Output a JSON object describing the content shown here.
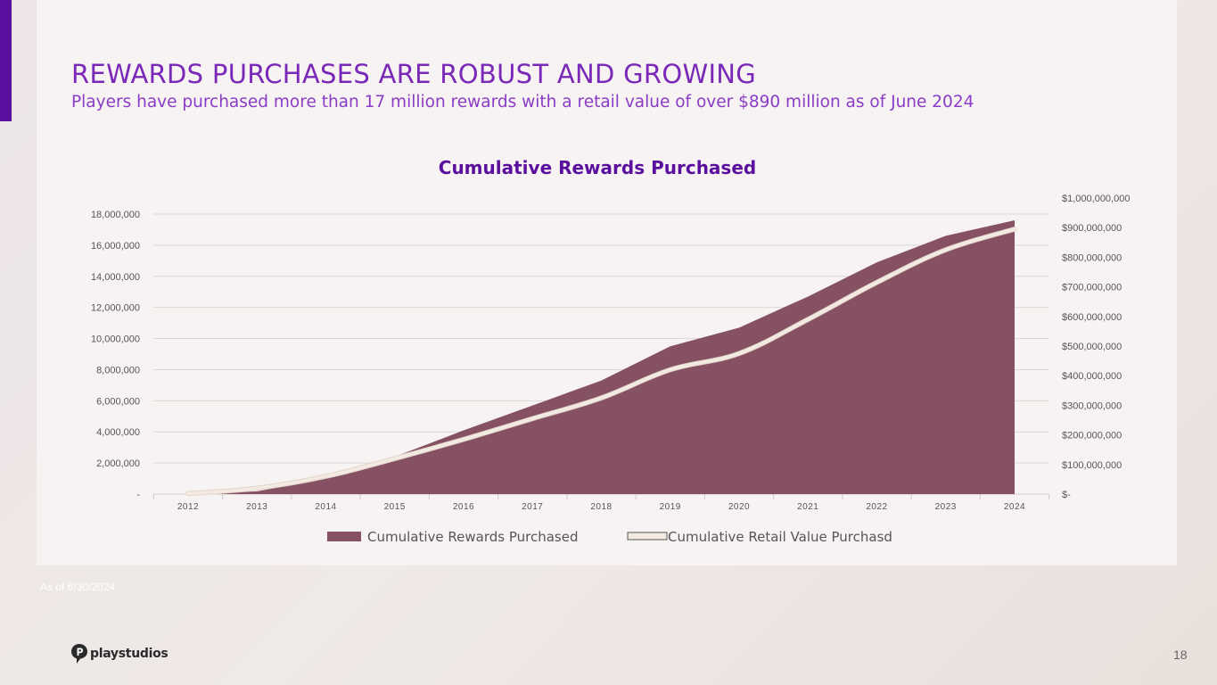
{
  "slide": {
    "title": "REWARDS PURCHASES ARE ROBUST AND GROWING",
    "subtitle": "Players have purchased more than 17 million rewards with a retail value of over $890 million as of June 2024",
    "footnote": "As of 6/30/2024",
    "logo_text": "playstudios",
    "page_number": "18",
    "colors": {
      "accent": "#5a0f9e",
      "title": "#7a28b8",
      "area": "#875164",
      "line": "#f3ebe2"
    }
  },
  "chart_data": {
    "type": "area",
    "title": "Cumulative Rewards Purchased",
    "categories": [
      "2012",
      "2013",
      "2014",
      "2015",
      "2016",
      "2017",
      "2018",
      "2019",
      "2020",
      "2021",
      "2022",
      "2023",
      "2024"
    ],
    "left_axis": {
      "ylim": [
        0,
        18000000
      ],
      "tick_labels": [
        "-",
        "2,000,000",
        "4,000,000",
        "6,000,000",
        "8,000,000",
        "10,000,000",
        "12,000,000",
        "14,000,000",
        "16,000,000",
        "18,000,000"
      ]
    },
    "right_axis": {
      "ylim": [
        0,
        1000000000
      ],
      "tick_labels": [
        "$-",
        "$100,000,000",
        "$200,000,000",
        "$300,000,000",
        "$400,000,000",
        "$500,000,000",
        "$600,000,000",
        "$700,000,000",
        "$800,000,000",
        "$900,000,000",
        "$1,000,000,000"
      ]
    },
    "series": [
      {
        "name": "Cumulative Rewards Purchased",
        "type": "area",
        "axis": "left",
        "values": [
          0,
          180000,
          1000000,
          2400000,
          4100000,
          5700000,
          7300000,
          9500000,
          10700000,
          12700000,
          14900000,
          16600000,
          17600000
        ]
      },
      {
        "name": "Cumulative Retail Value Purchasd",
        "type": "line",
        "axis": "right",
        "values": [
          2000000,
          20000000,
          60000000,
          120000000,
          185000000,
          255000000,
          325000000,
          420000000,
          475000000,
          590000000,
          715000000,
          825000000,
          895000000
        ]
      }
    ],
    "legend_position": "bottom",
    "grid": true
  }
}
